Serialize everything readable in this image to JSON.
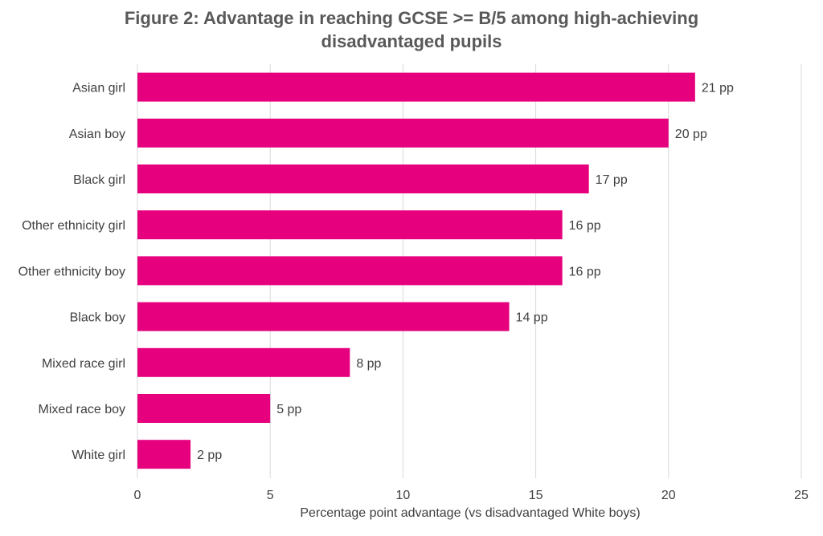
{
  "chart_data": {
    "type": "bar",
    "orientation": "horizontal",
    "title_lines": [
      "Figure 2: Advantage in reaching GCSE >= B/5 among high-achieving",
      "disadvantaged pupils"
    ],
    "categories": [
      "Asian girl",
      "Asian boy",
      "Black girl",
      "Other ethnicity girl",
      "Other ethnicity boy",
      "Black boy",
      "Mixed race girl",
      "Mixed race boy",
      "White girl"
    ],
    "values": [
      21,
      20,
      17,
      16,
      16,
      14,
      8,
      5,
      2
    ],
    "data_labels": [
      "21 pp",
      "20 pp",
      "17 pp",
      "16 pp",
      "16 pp",
      "14 pp",
      "8 pp",
      "5 pp",
      "2 pp"
    ],
    "xlabel": "Percentage point advantage (vs disadvantaged White boys)",
    "ylabel": "",
    "xlim": [
      0,
      25
    ],
    "xticks": [
      0,
      5,
      10,
      15,
      20,
      25
    ],
    "xtick_labels": [
      "0",
      "5",
      "10",
      "15",
      "20",
      "25"
    ],
    "grid": "vertical",
    "legend": "none",
    "bar_color": "#E6007E",
    "grid_color": "#D9D9D9",
    "text_color": "#404040",
    "title_color": "#595959"
  }
}
